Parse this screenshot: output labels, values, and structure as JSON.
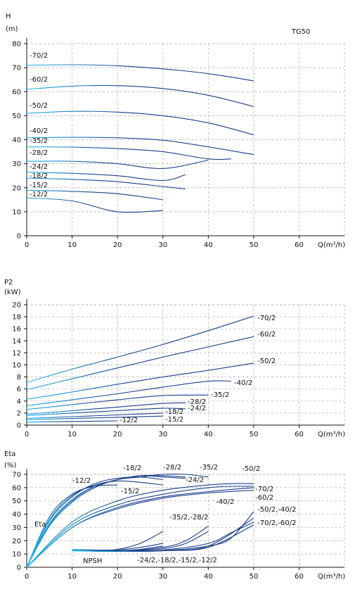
{
  "chart_data": [
    {
      "type": "line",
      "id": "head",
      "ylabel": "H",
      "yunit": "(m)",
      "xlabel": "Q(m³/h)",
      "model": "TG50",
      "xlim": [
        0,
        70
      ],
      "ylim": [
        0,
        80
      ],
      "xticks": [
        0,
        10,
        20,
        30,
        40,
        50,
        60
      ],
      "yticks": [
        0,
        10,
        20,
        30,
        40,
        50,
        60,
        70,
        80
      ],
      "grid": true,
      "series": [
        {
          "name": "-70/2",
          "x": [
            0,
            10,
            20,
            30,
            40,
            50
          ],
          "values": [
            71.0,
            71.2,
            70.8,
            69.5,
            67.5,
            64.5
          ]
        },
        {
          "name": "-60/2",
          "x": [
            0,
            10,
            20,
            30,
            40,
            50
          ],
          "values": [
            61.0,
            62.3,
            62.5,
            61.3,
            58.5,
            53.8
          ]
        },
        {
          "name": "-50/2",
          "x": [
            0,
            10,
            20,
            30,
            40,
            50
          ],
          "values": [
            51.0,
            51.8,
            51.5,
            50.0,
            47.0,
            42.0
          ]
        },
        {
          "name": "-40/2",
          "x": [
            0,
            10,
            20,
            30,
            40,
            50
          ],
          "values": [
            40.8,
            41.0,
            40.8,
            39.8,
            37.0,
            33.8
          ]
        },
        {
          "name": "-35/2",
          "x": [
            0,
            10,
            20,
            30,
            40,
            45
          ],
          "values": [
            37.0,
            36.9,
            36.3,
            35.0,
            32.0,
            32.0
          ]
        },
        {
          "name": "-28/2",
          "x": [
            0,
            10,
            20,
            30,
            40
          ],
          "values": [
            31.0,
            31.0,
            30.0,
            28.0,
            31.5
          ]
        },
        {
          "name": "-24/2",
          "x": [
            0,
            10,
            20,
            30,
            35
          ],
          "values": [
            26.5,
            26.0,
            25.0,
            23.0,
            25.5
          ]
        },
        {
          "name": "-18/2",
          "x": [
            0,
            10,
            20,
            30,
            35
          ],
          "values": [
            24.0,
            23.5,
            22.5,
            20.5,
            19.5
          ]
        },
        {
          "name": "-15/2",
          "x": [
            0,
            10,
            20,
            30
          ],
          "values": [
            19.0,
            18.5,
            17.5,
            15.0
          ]
        },
        {
          "name": "-12/2",
          "x": [
            0,
            10,
            20,
            30
          ],
          "values": [
            15.8,
            14.5,
            10.0,
            10.5
          ]
        }
      ]
    },
    {
      "type": "line",
      "id": "power",
      "ylabel": "P2",
      "yunit": "(kW)",
      "xlabel": "Q(m³/h)",
      "xlim": [
        0,
        70
      ],
      "ylim": [
        0,
        20
      ],
      "xticks": [
        0,
        10,
        20,
        30,
        40,
        50,
        60
      ],
      "yticks": [
        0,
        2,
        4,
        6,
        8,
        10,
        12,
        14,
        16,
        18,
        20
      ],
      "grid": true,
      "series": [
        {
          "name": "-70/2",
          "x": [
            0,
            10,
            20,
            30,
            40,
            50
          ],
          "values": [
            7.1,
            9.3,
            11.3,
            13.4,
            15.7,
            18.1
          ]
        },
        {
          "name": "-60/2",
          "x": [
            0,
            10,
            20,
            30,
            40,
            50
          ],
          "values": [
            5.9,
            7.7,
            9.5,
            11.3,
            13.0,
            14.7
          ]
        },
        {
          "name": "-50/2",
          "x": [
            0,
            10,
            20,
            30,
            40,
            50
          ],
          "values": [
            4.3,
            5.5,
            6.8,
            8.0,
            9.1,
            10.3
          ]
        },
        {
          "name": "-40/2",
          "x": [
            0,
            10,
            20,
            30,
            40,
            45
          ],
          "values": [
            3.2,
            4.2,
            5.2,
            6.3,
            7.3,
            7.3
          ]
        },
        {
          "name": "-35/2",
          "x": [
            0,
            10,
            20,
            30,
            40
          ],
          "values": [
            2.6,
            3.4,
            4.2,
            4.9,
            5.0
          ]
        },
        {
          "name": "-28/2",
          "x": [
            0,
            10,
            20,
            30,
            35
          ],
          "values": [
            1.8,
            2.4,
            3.0,
            3.6,
            3.7
          ]
        },
        {
          "name": "-24/2",
          "x": [
            0,
            10,
            20,
            30,
            35
          ],
          "values": [
            1.6,
            2.0,
            2.4,
            2.8,
            2.7
          ]
        },
        {
          "name": "-18/2",
          "x": [
            0,
            10,
            20,
            30
          ],
          "values": [
            1.1,
            1.4,
            1.7,
            2.0
          ]
        },
        {
          "name": "-15/2",
          "x": [
            0,
            10,
            20,
            30
          ],
          "values": [
            0.9,
            1.1,
            1.3,
            1.5
          ]
        },
        {
          "name": "-12/2",
          "x": [
            0,
            10,
            20
          ],
          "values": [
            0.5,
            0.6,
            0.7
          ]
        }
      ]
    },
    {
      "type": "line",
      "id": "efficiency",
      "ylabel": "Eta",
      "yunit": "(%)",
      "xlabel": "Q(m³/h)",
      "xlim": [
        0,
        70
      ],
      "ylim": [
        0,
        70
      ],
      "xticks": [
        0,
        10,
        20,
        30,
        40,
        50,
        60
      ],
      "yticks": [
        0,
        10,
        20,
        30,
        40,
        50,
        60,
        70
      ],
      "grid": true,
      "area_labels": [
        "Eta",
        "NPSH"
      ],
      "curve_labels": [
        "-12/2",
        "-18/2",
        "-28/2",
        "-35/2",
        "-50/2",
        "-15/2",
        "-24/2",
        "-70/2",
        "-60/2",
        "-40/2",
        "-50/2,-40/2",
        "-70/2,-60/2",
        "-35/2,-28/2",
        "-24/2,-18/2,-15/2,-12/2"
      ],
      "series": [
        {
          "name": "-12/2",
          "x": [
            0,
            5,
            10,
            15,
            20
          ],
          "values": [
            0,
            38,
            55,
            61,
            62
          ]
        },
        {
          "name": "-15/2",
          "x": [
            0,
            5,
            10,
            15,
            20,
            25,
            30
          ],
          "values": [
            0,
            36,
            54,
            62,
            65,
            64,
            62
          ]
        },
        {
          "name": "-18/2",
          "x": [
            0,
            5,
            10,
            15,
            20,
            25,
            30
          ],
          "values": [
            0,
            35,
            53,
            63,
            67,
            68,
            66
          ]
        },
        {
          "name": "-24/2",
          "x": [
            0,
            5,
            10,
            15,
            20,
            25,
            30,
            35
          ],
          "values": [
            0,
            33,
            51,
            61,
            66,
            69,
            68,
            67
          ]
        },
        {
          "name": "-28/2",
          "x": [
            0,
            5,
            10,
            15,
            20,
            25,
            30,
            35
          ],
          "values": [
            0,
            32,
            50,
            61,
            66,
            69,
            69,
            68
          ]
        },
        {
          "name": "-35/2",
          "x": [
            0,
            5,
            10,
            15,
            20,
            25,
            30,
            35,
            40
          ],
          "values": [
            0,
            31,
            49,
            60,
            66,
            68,
            70,
            70,
            68
          ]
        },
        {
          "name": "-40/2",
          "x": [
            0,
            10,
            20,
            30,
            40,
            45,
            50
          ],
          "values": [
            0,
            32,
            47,
            55,
            60,
            61,
            61
          ]
        },
        {
          "name": "-50/2",
          "x": [
            0,
            10,
            20,
            30,
            40,
            45,
            50
          ],
          "values": [
            0,
            34,
            50,
            58,
            62,
            63,
            63
          ]
        },
        {
          "name": "-60/2",
          "x": [
            0,
            10,
            20,
            30,
            40,
            50
          ],
          "values": [
            0,
            30,
            44,
            52,
            56,
            58
          ]
        },
        {
          "name": "-70/2",
          "x": [
            0,
            10,
            20,
            30,
            40,
            50
          ],
          "values": [
            0,
            30,
            45,
            53,
            57,
            60
          ]
        },
        {
          "name": "NPSH -12/2",
          "x": [
            10,
            15,
            20
          ],
          "values": [
            13.5,
            13,
            13
          ]
        },
        {
          "name": "NPSH -15/2",
          "x": [
            10,
            15,
            20,
            25,
            30
          ],
          "values": [
            13.5,
            12.5,
            12.5,
            13.5,
            16
          ]
        },
        {
          "name": "NPSH -18/2",
          "x": [
            10,
            15,
            20,
            25,
            30
          ],
          "values": [
            13.5,
            12.5,
            13,
            15,
            18
          ]
        },
        {
          "name": "NPSH -24/2",
          "x": [
            10,
            15,
            20,
            25,
            30
          ],
          "values": [
            13.5,
            12.5,
            13.5,
            18,
            27
          ]
        },
        {
          "name": "NPSH -28/2",
          "x": [
            10,
            20,
            30,
            35,
            40
          ],
          "values": [
            13,
            12,
            15,
            20,
            31
          ]
        },
        {
          "name": "NPSH -35/2",
          "x": [
            10,
            20,
            30,
            35,
            40
          ],
          "values": [
            13,
            12,
            14,
            18,
            27
          ]
        },
        {
          "name": "NPSH -40/2",
          "x": [
            10,
            20,
            30,
            40,
            45,
            50
          ],
          "values": [
            12.5,
            12,
            13,
            18,
            26,
            34
          ]
        },
        {
          "name": "NPSH -50/2",
          "x": [
            10,
            20,
            30,
            40,
            45,
            50
          ],
          "values": [
            12.5,
            12,
            12.5,
            16,
            22,
            42
          ]
        },
        {
          "name": "NPSH -60/2",
          "x": [
            10,
            20,
            30,
            40,
            50
          ],
          "values": [
            12.5,
            12,
            12.5,
            15,
            32
          ]
        },
        {
          "name": "NPSH -70/2",
          "x": [
            10,
            20,
            30,
            40,
            50
          ],
          "values": [
            12.5,
            12,
            12.5,
            16,
            37
          ]
        }
      ]
    }
  ],
  "colors": {
    "curve_dark": "#1a3e8a",
    "curve_light": "#1fb6e8",
    "grid": "#aaaaaa",
    "axis": "#111111"
  }
}
